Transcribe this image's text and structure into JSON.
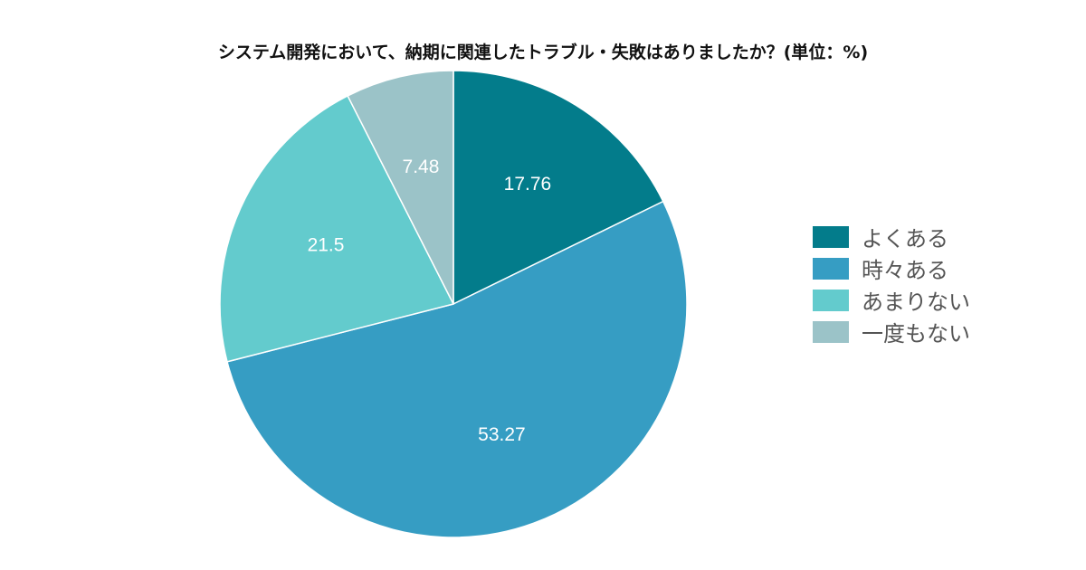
{
  "chart_data": {
    "type": "pie",
    "title": "システム開発において、納期に関連したトラブル・失敗はありましたか？(単位：%)",
    "categories": [
      "よくある",
      "時々ある",
      "あまりない",
      "一度もない"
    ],
    "values": [
      17.76,
      53.27,
      21.5,
      7.48
    ],
    "value_labels": [
      "17.76",
      "53.27",
      "21.5",
      "7.48"
    ],
    "colors": [
      "#037C8B",
      "#369DC3",
      "#63CBCD",
      "#9BC3C8"
    ],
    "legend_position": "right",
    "start_angle": "12 o'clock",
    "direction": "clockwise"
  }
}
